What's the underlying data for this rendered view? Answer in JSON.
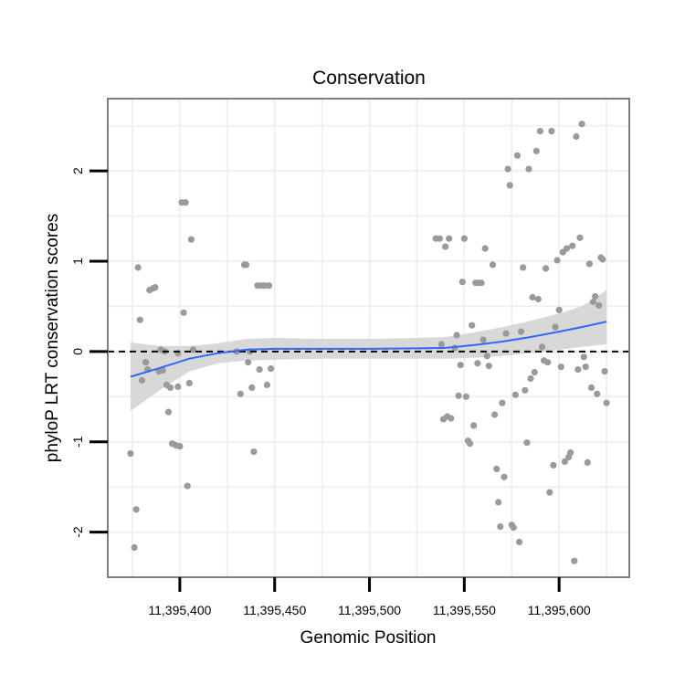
{
  "chart_data": {
    "type": "scatter",
    "title": "Conservation",
    "xlabel": "Genomic Position",
    "ylabel": "phyloP LRT conservation scores",
    "xlim": [
      11395362,
      11395637
    ],
    "ylim": [
      -2.5,
      2.8
    ],
    "x_ticks": [
      11395400,
      11395450,
      11395500,
      11395550,
      11395600
    ],
    "x_tick_labels": [
      "11,395,400",
      "11,395,450",
      "11,395,500",
      "11,395,550",
      "11,395,600"
    ],
    "y_ticks": [
      -2,
      -1,
      0,
      1,
      2
    ],
    "y_tick_labels": [
      "-2",
      "-1",
      "0",
      "1",
      "2"
    ],
    "reference_line": {
      "y": 0,
      "style": "dashed"
    },
    "colors": {
      "points": "#9a9a9a",
      "smooth": "#3366ff",
      "band": "#d4d4d4",
      "grid": "#f0f0f0",
      "border": "#7f7f7f"
    },
    "points": [
      [
        11395374,
        -1.13
      ],
      [
        11395376,
        -2.17
      ],
      [
        11395377,
        -1.75
      ],
      [
        11395378,
        0.93
      ],
      [
        11395379,
        0.35
      ],
      [
        11395380,
        -0.32
      ],
      [
        11395382,
        -0.12
      ],
      [
        11395383,
        -0.2
      ],
      [
        11395384,
        0.68
      ],
      [
        11395386,
        0.7
      ],
      [
        11395387,
        0.71
      ],
      [
        11395389,
        -0.22
      ],
      [
        11395390,
        0.02
      ],
      [
        11395391,
        -0.21
      ],
      [
        11395392,
        0.0
      ],
      [
        11395393,
        -0.37
      ],
      [
        11395394,
        -0.67
      ],
      [
        11395395,
        -0.4
      ],
      [
        11395396,
        -1.02
      ],
      [
        11395398,
        -1.04
      ],
      [
        11395399,
        -0.02
      ],
      [
        11395399,
        -0.39
      ],
      [
        11395400,
        -1.05
      ],
      [
        11395401,
        1.65
      ],
      [
        11395402,
        0.43
      ],
      [
        11395403,
        1.65
      ],
      [
        11395404,
        -1.49
      ],
      [
        11395405,
        -0.35
      ],
      [
        11395406,
        1.24
      ],
      [
        11395407,
        0.02
      ],
      [
        11395430,
        0.0
      ],
      [
        11395432,
        -0.47
      ],
      [
        11395434,
        0.96
      ],
      [
        11395435,
        0.96
      ],
      [
        11395436,
        -0.12
      ],
      [
        11395437,
        0.0
      ],
      [
        11395438,
        -0.4
      ],
      [
        11395439,
        -1.11
      ],
      [
        11395441,
        0.73
      ],
      [
        11395442,
        -0.2
      ],
      [
        11395443,
        0.73
      ],
      [
        11395444,
        0.73
      ],
      [
        11395445,
        0.73
      ],
      [
        11395446,
        -0.37
      ],
      [
        11395447,
        0.73
      ],
      [
        11395448,
        -0.19
      ],
      [
        11395535,
        1.25
      ],
      [
        11395537,
        1.25
      ],
      [
        11395538,
        0.08
      ],
      [
        11395539,
        -0.75
      ],
      [
        11395540,
        1.16
      ],
      [
        11395541,
        -0.72
      ],
      [
        11395542,
        1.25
      ],
      [
        11395543,
        -0.74
      ],
      [
        11395545,
        0.04
      ],
      [
        11395546,
        0.18
      ],
      [
        11395547,
        -0.49
      ],
      [
        11395548,
        -0.15
      ],
      [
        11395549,
        0.77
      ],
      [
        11395550,
        1.25
      ],
      [
        11395551,
        -0.5
      ],
      [
        11395552,
        -0.99
      ],
      [
        11395553,
        -1.02
      ],
      [
        11395554,
        0.29
      ],
      [
        11395555,
        -0.82
      ],
      [
        11395556,
        0.76
      ],
      [
        11395557,
        -0.13
      ],
      [
        11395558,
        0.76
      ],
      [
        11395559,
        0.76
      ],
      [
        11395560,
        0.13
      ],
      [
        11395561,
        1.14
      ],
      [
        11395562,
        -0.05
      ],
      [
        11395563,
        -0.16
      ],
      [
        11395565,
        0.96
      ],
      [
        11395566,
        -0.7
      ],
      [
        11395567,
        -1.3
      ],
      [
        11395568,
        -1.67
      ],
      [
        11395569,
        -1.94
      ],
      [
        11395570,
        -0.57
      ],
      [
        11395571,
        -1.39
      ],
      [
        11395572,
        0.2
      ],
      [
        11395573,
        2.02
      ],
      [
        11395574,
        1.84
      ],
      [
        11395575,
        -1.92
      ],
      [
        11395576,
        -1.95
      ],
      [
        11395577,
        -0.48
      ],
      [
        11395578,
        2.17
      ],
      [
        11395579,
        -2.11
      ],
      [
        11395580,
        0.22
      ],
      [
        11395581,
        0.93
      ],
      [
        11395582,
        -0.43
      ],
      [
        11395583,
        -1.01
      ],
      [
        11395584,
        2.02
      ],
      [
        11395585,
        -0.3
      ],
      [
        11395586,
        0.6
      ],
      [
        11395587,
        -0.23
      ],
      [
        11395588,
        2.22
      ],
      [
        11395589,
        0.58
      ],
      [
        11395590,
        2.44
      ],
      [
        11395591,
        0.05
      ],
      [
        11395592,
        -0.1
      ],
      [
        11395593,
        0.92
      ],
      [
        11395594,
        -0.12
      ],
      [
        11395595,
        -1.56
      ],
      [
        11395596,
        2.44
      ],
      [
        11395597,
        -1.26
      ],
      [
        11395598,
        0.27
      ],
      [
        11395599,
        1.01
      ],
      [
        11395600,
        0.46
      ],
      [
        11395601,
        -0.17
      ],
      [
        11395602,
        1.1
      ],
      [
        11395603,
        -1.22
      ],
      [
        11395604,
        1.14
      ],
      [
        11395605,
        -1.17
      ],
      [
        11395606,
        -1.12
      ],
      [
        11395607,
        1.17
      ],
      [
        11395608,
        -2.32
      ],
      [
        11395609,
        2.38
      ],
      [
        11395610,
        -0.2
      ],
      [
        11395611,
        1.26
      ],
      [
        11395612,
        2.52
      ],
      [
        11395613,
        -0.06
      ],
      [
        11395614,
        -0.17
      ],
      [
        11395615,
        -1.23
      ],
      [
        11395616,
        0.97
      ],
      [
        11395617,
        -0.4
      ],
      [
        11395618,
        0.55
      ],
      [
        11395619,
        0.61
      ],
      [
        11395620,
        -0.47
      ],
      [
        11395621,
        0.51
      ],
      [
        11395622,
        1.04
      ],
      [
        11395623,
        1.02
      ],
      [
        11395624,
        -0.22
      ],
      [
        11395625,
        -0.57
      ]
    ],
    "smooth": {
      "x": [
        11395374,
        11395390,
        11395405,
        11395420,
        11395435,
        11395450,
        11395475,
        11395500,
        11395525,
        11395540,
        11395555,
        11395570,
        11395585,
        11395600,
        11395612,
        11395625
      ],
      "y": [
        -0.28,
        -0.18,
        -0.08,
        -0.02,
        0.02,
        0.03,
        0.03,
        0.03,
        0.035,
        0.04,
        0.07,
        0.11,
        0.16,
        0.22,
        0.27,
        0.33
      ],
      "lower": [
        -0.66,
        -0.42,
        -0.22,
        -0.13,
        -0.1,
        -0.09,
        -0.08,
        -0.08,
        -0.08,
        -0.08,
        -0.07,
        -0.05,
        -0.02,
        0.02,
        0.05,
        0.08
      ],
      "upper": [
        0.1,
        0.06,
        0.06,
        0.09,
        0.14,
        0.15,
        0.14,
        0.14,
        0.15,
        0.16,
        0.21,
        0.27,
        0.34,
        0.42,
        0.5,
        0.68
      ]
    }
  }
}
